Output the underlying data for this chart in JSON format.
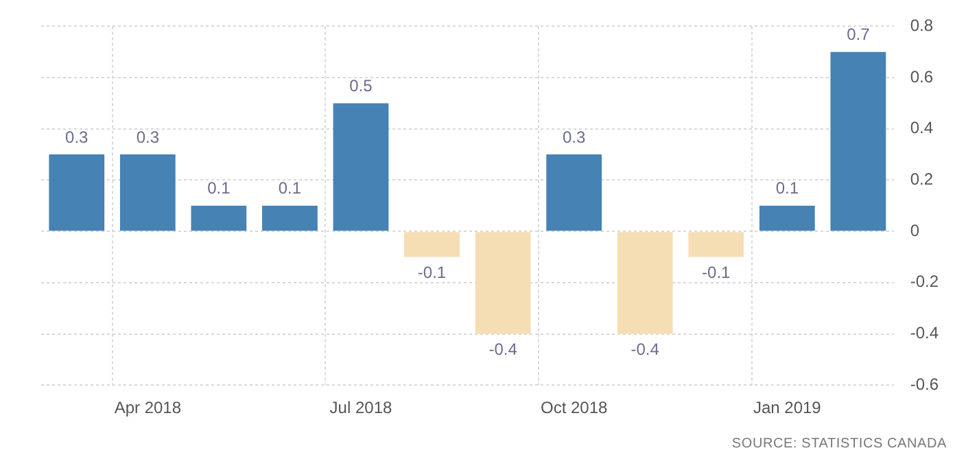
{
  "chart_data": {
    "type": "bar",
    "categories": [
      null,
      "Apr 2018",
      null,
      null,
      "Jul 2018",
      null,
      null,
      "Oct 2018",
      null,
      null,
      "Jan 2019",
      null
    ],
    "values": [
      0.3,
      0.3,
      0.1,
      0.1,
      0.5,
      -0.1,
      -0.4,
      0.3,
      -0.4,
      -0.1,
      0.1,
      0.7
    ],
    "colors": [
      "#4682b4",
      "#4682b4",
      "#4682b4",
      "#4682b4",
      "#4682b4",
      "#f5deb3",
      "#f5deb3",
      "#4682b4",
      "#f5deb3",
      "#f5deb3",
      "#4682b4",
      "#4682b4"
    ],
    "ylim": [
      -0.6,
      0.8
    ],
    "yticks": [
      -0.6,
      -0.4,
      -0.2,
      0,
      0.2,
      0.4,
      0.6,
      0.8
    ],
    "grid": true,
    "legend": false,
    "data_labels": true,
    "annotations": [
      "SOURCE: STATISTICS CANADA"
    ]
  }
}
